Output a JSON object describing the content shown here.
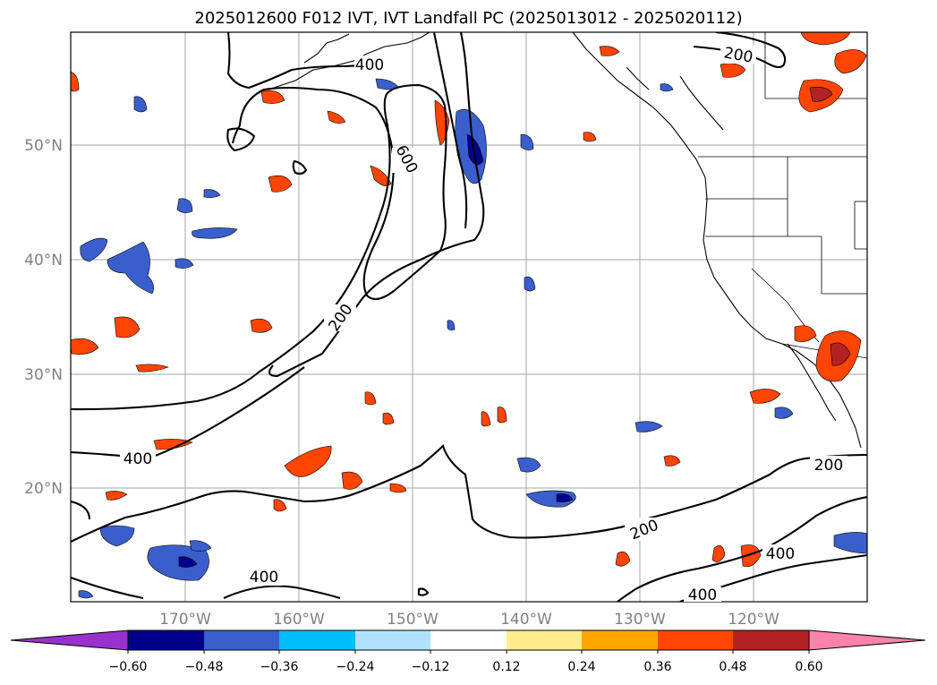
{
  "title": "2025012600 F012 IVT, IVT Landfall PC (2025013012 - 2025020112)",
  "map": {
    "lon_labels": [
      "170°W",
      "160°W",
      "150°W",
      "140°W",
      "130°W",
      "120°W"
    ],
    "lat_labels": [
      "50°N",
      "40°N",
      "30°N",
      "20°N"
    ],
    "contour_labels": [
      "400",
      "600",
      "200",
      "400",
      "200",
      "200",
      "400",
      "400",
      "200",
      "400"
    ]
  },
  "colorbar": {
    "ticks": [
      "−0.60",
      "−0.48",
      "−0.36",
      "−0.24",
      "−0.12",
      "0.12",
      "0.24",
      "0.36",
      "0.48",
      "0.60"
    ],
    "colors": {
      "under": "#9932cc",
      "bins": [
        "#00008b",
        "#3a5fcd",
        "#00bfff",
        "#b0e2ff",
        "#ffffff",
        "#ffec8b",
        "#ffa500",
        "#ff4500",
        "#b22222",
        "#ff82ab"
      ]
    }
  }
}
